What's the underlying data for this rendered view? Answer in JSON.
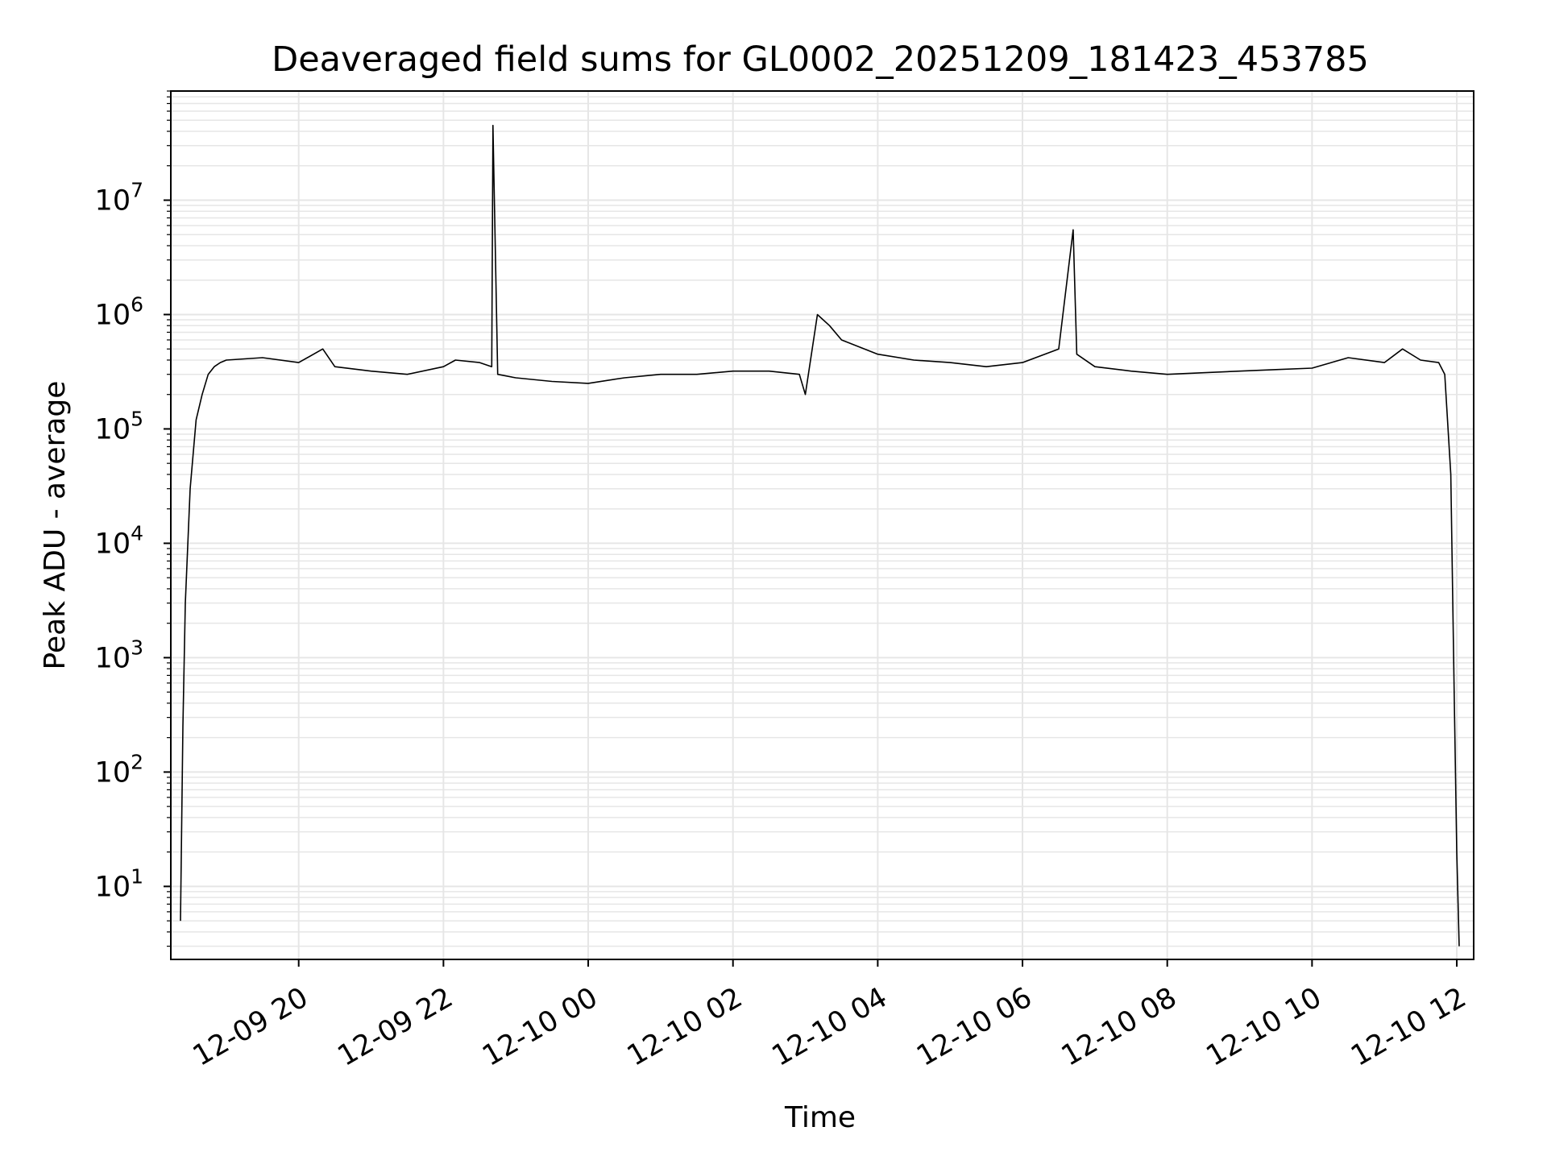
{
  "chart_data": {
    "type": "line",
    "title": "Deaveraged field sums for GL0002_20251209_181423_453785",
    "xlabel": "Time",
    "ylabel": "Peak ADU - average",
    "y_scale": "log",
    "ylim": [
      2.3,
      90000000
    ],
    "xlim": [
      "2025-12-09 18:14",
      "2025-12-10 12:14"
    ],
    "grid": "on (major and minor)",
    "line_color": "#000000",
    "grid_color": "#e6e6e6",
    "x_ticks": [
      {
        "value": "2025-12-09 20:00",
        "label": "12-09 20"
      },
      {
        "value": "2025-12-09 22:00",
        "label": "12-09 22"
      },
      {
        "value": "2025-12-10 00:00",
        "label": "12-10 00"
      },
      {
        "value": "2025-12-10 02:00",
        "label": "12-10 02"
      },
      {
        "value": "2025-12-10 04:00",
        "label": "12-10 04"
      },
      {
        "value": "2025-12-10 06:00",
        "label": "12-10 06"
      },
      {
        "value": "2025-12-10 08:00",
        "label": "12-10 08"
      },
      {
        "value": "2025-12-10 10:00",
        "label": "12-10 10"
      },
      {
        "value": "2025-12-10 12:00",
        "label": "12-10 12"
      }
    ],
    "y_ticks": [
      {
        "value": 10,
        "base": "10",
        "exp": "1"
      },
      {
        "value": 100,
        "base": "10",
        "exp": "2"
      },
      {
        "value": 1000,
        "base": "10",
        "exp": "3"
      },
      {
        "value": 10000,
        "base": "10",
        "exp": "4"
      },
      {
        "value": 100000,
        "base": "10",
        "exp": "5"
      },
      {
        "value": 1000000,
        "base": "10",
        "exp": "6"
      },
      {
        "value": 10000000,
        "base": "10",
        "exp": "7"
      }
    ],
    "series": [
      {
        "x": [
          "2025-12-09 18:22",
          "2025-12-09 18:24",
          "2025-12-09 18:26",
          "2025-12-09 18:30",
          "2025-12-09 18:35",
          "2025-12-09 18:40",
          "2025-12-09 18:45",
          "2025-12-09 18:50",
          "2025-12-09 18:55",
          "2025-12-09 19:00",
          "2025-12-09 19:30",
          "2025-12-09 20:00",
          "2025-12-09 20:20",
          "2025-12-09 20:30",
          "2025-12-09 21:00",
          "2025-12-09 21:30",
          "2025-12-09 22:00",
          "2025-12-09 22:10",
          "2025-12-09 22:30",
          "2025-12-09 22:40",
          "2025-12-09 22:41",
          "2025-12-09 22:45",
          "2025-12-09 23:00",
          "2025-12-09 23:30",
          "2025-12-10 00:00",
          "2025-12-10 00:30",
          "2025-12-10 01:00",
          "2025-12-10 01:30",
          "2025-12-10 02:00",
          "2025-12-10 02:30",
          "2025-12-10 02:55",
          "2025-12-10 03:00",
          "2025-12-10 03:10",
          "2025-12-10 03:20",
          "2025-12-10 03:30",
          "2025-12-10 04:00",
          "2025-12-10 04:30",
          "2025-12-10 05:00",
          "2025-12-10 05:30",
          "2025-12-10 06:00",
          "2025-12-10 06:30",
          "2025-12-10 06:42",
          "2025-12-10 06:45",
          "2025-12-10 07:00",
          "2025-12-10 07:30",
          "2025-12-10 08:00",
          "2025-12-10 08:30",
          "2025-12-10 09:00",
          "2025-12-10 09:30",
          "2025-12-10 10:00",
          "2025-12-10 10:30",
          "2025-12-10 11:00",
          "2025-12-10 11:15",
          "2025-12-10 11:30",
          "2025-12-10 11:45",
          "2025-12-10 11:50",
          "2025-12-10 11:55",
          "2025-12-10 11:58",
          "2025-12-10 12:00",
          "2025-12-10 12:02"
        ],
        "y": [
          5,
          250,
          3000,
          30000,
          120000,
          200000,
          300000,
          350000,
          380000,
          400000,
          420000,
          380000,
          500000,
          350000,
          320000,
          300000,
          350000,
          400000,
          380000,
          350000,
          45000000,
          300000,
          280000,
          260000,
          250000,
          280000,
          300000,
          300000,
          320000,
          320000,
          300000,
          200000,
          1000000,
          800000,
          600000,
          450000,
          400000,
          380000,
          350000,
          380000,
          500000,
          5500000,
          450000,
          350000,
          320000,
          300000,
          310000,
          320000,
          330000,
          340000,
          420000,
          380000,
          500000,
          400000,
          380000,
          300000,
          40000,
          400,
          20,
          3
        ]
      }
    ]
  }
}
